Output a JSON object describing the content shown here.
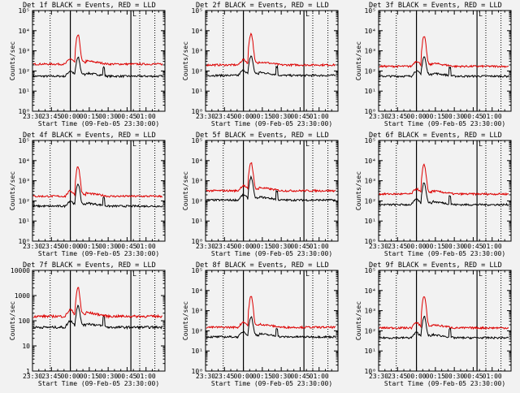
{
  "chart_data": [
    {
      "type": "line",
      "title": "Det 1f BLACK = Events, RED = LLD",
      "ylabel": "Counts/sec",
      "xlabel": "Start Time (09-Feb-05 23:30:00)",
      "x_ticks": [
        "23:30",
        "23:45",
        "00:00",
        "00:15",
        "00:30",
        "00:45",
        "01:00"
      ],
      "y_ticks": [
        "10⁰",
        "10¹",
        "10²",
        "10³",
        "10⁴",
        "10⁵"
      ],
      "yscale": "log",
      "ylim": [
        1,
        100000
      ],
      "series": [
        {
          "color": "#000000",
          "base": 55,
          "peak": 450
        },
        {
          "color": "#dd0000",
          "base": 220,
          "peak": 6000
        }
      ]
    },
    {
      "type": "line",
      "title": "Det 2f BLACK = Events, RED = LLD",
      "ylabel": "Counts/sec",
      "xlabel": "Start Time (09-Feb-05 23:30:00)",
      "x_ticks": [
        "23:30",
        "23:45",
        "00:00",
        "00:15",
        "00:30",
        "00:45",
        "01:00"
      ],
      "y_ticks": [
        "10⁰",
        "10¹",
        "10²",
        "10³",
        "10⁴",
        "10⁵"
      ],
      "yscale": "log",
      "ylim": [
        1,
        100000
      ],
      "series": [
        {
          "color": "#000000",
          "base": 60,
          "peak": 550
        },
        {
          "color": "#dd0000",
          "base": 200,
          "peak": 7000
        }
      ]
    },
    {
      "type": "line",
      "title": "Det 3f BLACK = Events, RED = LLD",
      "ylabel": "Counts/sec",
      "xlabel": "Start Time (09-Feb-05 23:30:00)",
      "x_ticks": [
        "23:30",
        "23:45",
        "00:00",
        "00:15",
        "00:30",
        "00:45",
        "01:00"
      ],
      "y_ticks": [
        "10⁰",
        "10¹",
        "10²",
        "10³",
        "10⁴",
        "10⁵"
      ],
      "yscale": "log",
      "ylim": [
        1,
        100000
      ],
      "series": [
        {
          "color": "#000000",
          "base": 55,
          "peak": 500
        },
        {
          "color": "#dd0000",
          "base": 170,
          "peak": 5000
        }
      ]
    },
    {
      "type": "line",
      "title": "Det 4f BLACK = Events, RED = LLD",
      "ylabel": "Counts/sec",
      "xlabel": "Start Time (09-Feb-05 23:30:00)",
      "x_ticks": [
        "23:30",
        "23:45",
        "00:00",
        "00:15",
        "00:30",
        "00:45",
        "01:00"
      ],
      "y_ticks": [
        "10⁰",
        "10¹",
        "10²",
        "10³",
        "10⁴",
        "10⁵"
      ],
      "yscale": "log",
      "ylim": [
        1,
        100000
      ],
      "series": [
        {
          "color": "#000000",
          "base": 55,
          "peak": 700
        },
        {
          "color": "#dd0000",
          "base": 170,
          "peak": 5000
        }
      ]
    },
    {
      "type": "line",
      "title": "Det 5f BLACK = Events, RED = LLD",
      "ylabel": "Counts/sec",
      "xlabel": "Start Time (09-Feb-05 23:30:00)",
      "x_ticks": [
        "23:30",
        "23:45",
        "00:00",
        "00:15",
        "00:30",
        "00:45",
        "01:00"
      ],
      "y_ticks": [
        "10⁰",
        "10¹",
        "10²",
        "10³",
        "10⁴",
        "10⁵"
      ],
      "yscale": "log",
      "ylim": [
        1,
        100000
      ],
      "series": [
        {
          "color": "#000000",
          "base": 110,
          "peak": 1500
        },
        {
          "color": "#dd0000",
          "base": 320,
          "peak": 8000
        }
      ]
    },
    {
      "type": "line",
      "title": "Det 6f BLACK = Events, RED = LLD",
      "ylabel": "Counts/sec",
      "xlabel": "Start Time (09-Feb-05 23:30:00)",
      "x_ticks": [
        "23:30",
        "23:45",
        "00:00",
        "00:15",
        "00:30",
        "00:45",
        "01:00"
      ],
      "y_ticks": [
        "10⁰",
        "10¹",
        "10²",
        "10³",
        "10⁴",
        "10⁵"
      ],
      "yscale": "log",
      "ylim": [
        1,
        100000
      ],
      "series": [
        {
          "color": "#000000",
          "base": 65,
          "peak": 800
        },
        {
          "color": "#dd0000",
          "base": 220,
          "peak": 6000
        }
      ]
    },
    {
      "type": "line",
      "title": "Det 7f BLACK = Events, RED = LLD",
      "ylabel": "Counts/sec",
      "xlabel": "Start Time (09-Feb-05 23:30:00)",
      "x_ticks": [
        "23:30",
        "23:45",
        "00:00",
        "00:15",
        "00:30",
        "00:45",
        "01:00"
      ],
      "y_ticks": [
        "1",
        "10",
        "100",
        "1000",
        "10000"
      ],
      "yscale": "log",
      "ylim": [
        1,
        10000
      ],
      "series": [
        {
          "color": "#000000",
          "base": 55,
          "peak": 400
        },
        {
          "color": "#dd0000",
          "base": 150,
          "peak": 2000
        }
      ]
    },
    {
      "type": "line",
      "title": "Det 8f BLACK = Events, RED = LLD",
      "ylabel": "Counts/sec",
      "xlabel": "Start Time (09-Feb-05 23:30:00)",
      "x_ticks": [
        "23:30",
        "23:45",
        "00:00",
        "00:15",
        "00:30",
        "00:45",
        "01:00"
      ],
      "y_ticks": [
        "10⁰",
        "10¹",
        "10²",
        "10³",
        "10⁴",
        "10⁵"
      ],
      "yscale": "log",
      "ylim": [
        1,
        100000
      ],
      "series": [
        {
          "color": "#000000",
          "base": 50,
          "peak": 500
        },
        {
          "color": "#dd0000",
          "base": 150,
          "peak": 5000
        }
      ]
    },
    {
      "type": "line",
      "title": "Det 9f BLACK = Events, RED = LLD",
      "ylabel": "Counts/sec",
      "xlabel": "Start Time (09-Feb-05 23:30:00)",
      "x_ticks": [
        "23:30",
        "23:45",
        "00:00",
        "00:15",
        "00:30",
        "00:45",
        "01:00"
      ],
      "y_ticks": [
        "10⁰",
        "10¹",
        "10²",
        "10³",
        "10⁴",
        "10⁵"
      ],
      "yscale": "log",
      "ylim": [
        1,
        100000
      ],
      "series": [
        {
          "color": "#000000",
          "base": 45,
          "peak": 500
        },
        {
          "color": "#dd0000",
          "base": 140,
          "peak": 5000
        }
      ]
    }
  ],
  "markers": {
    "dotted_lines": [
      "23:44",
      "00:55",
      "01:07"
    ],
    "solid_lines": [
      "00:00",
      "00:48"
    ],
    "corner_mark": "L"
  }
}
